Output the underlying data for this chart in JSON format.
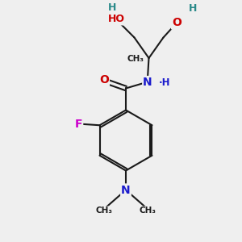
{
  "background_color": "#efefef",
  "bond_color": "#1a1a1a",
  "atom_colors": {
    "O": "#cc0000",
    "N": "#1a1acc",
    "F": "#cc00cc",
    "H_teal": "#2a8a8a",
    "C": "#1a1a1a"
  },
  "fig_w": 3.0,
  "fig_h": 3.0,
  "dpi": 100,
  "xlim": [
    0,
    10
  ],
  "ylim": [
    0,
    10
  ]
}
